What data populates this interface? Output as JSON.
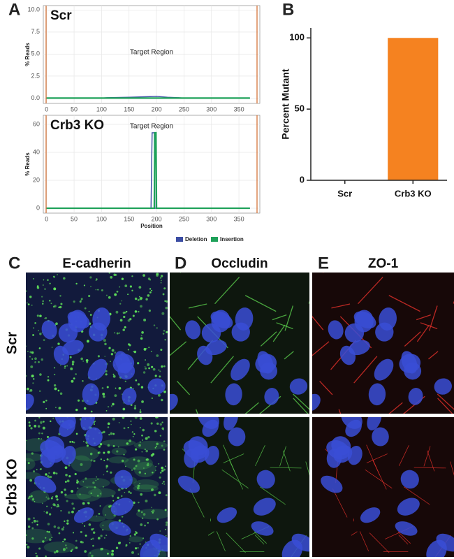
{
  "panel_labels": [
    "A",
    "B",
    "C",
    "D",
    "E"
  ],
  "chart_data": [
    {
      "type": "line",
      "title": "Scr",
      "y_label": "% Reads",
      "annotation": "Target Region",
      "x": [
        0,
        100,
        110,
        150,
        180,
        200,
        220,
        240,
        250,
        370
      ],
      "series": [
        {
          "name": "Deletion",
          "color": "#3b4da3",
          "values": [
            0,
            0,
            0.05,
            0.1,
            0.15,
            0.2,
            0.1,
            0.05,
            0,
            0
          ]
        },
        {
          "name": "Insertion",
          "color": "#1fa25a",
          "values": [
            0,
            0,
            0,
            0,
            0,
            0,
            0,
            0,
            0,
            0
          ]
        }
      ],
      "xlim": [
        -6,
        388
      ],
      "ylim": [
        -0.6,
        10.5
      ],
      "xticks": [
        0,
        50,
        100,
        150,
        200,
        250,
        300,
        350
      ],
      "yticks": [
        {
          "value": 0,
          "label": "0.0"
        },
        {
          "value": 2.5,
          "label": "2.5"
        },
        {
          "value": 5,
          "label": "5.0"
        },
        {
          "value": 7.5,
          "label": "7.5"
        },
        {
          "value": 10,
          "label": "10.0"
        }
      ],
      "grid": true
    },
    {
      "type": "line",
      "title": "Crb3 KO",
      "y_label": "% Reads",
      "x_label": "Position",
      "annotation": "Target Region",
      "x": [
        0,
        190,
        192,
        196,
        197,
        199,
        200,
        370
      ],
      "series": [
        {
          "name": "Deletion",
          "color": "#3b4da3",
          "values": [
            0,
            0,
            54,
            54,
            0,
            0,
            0,
            0
          ]
        },
        {
          "name": "Insertion",
          "color": "#1fa25a",
          "values": [
            0,
            0,
            0,
            0,
            54,
            54,
            0,
            0
          ]
        }
      ],
      "xlim": [
        -6,
        388
      ],
      "ylim": [
        -3.5,
        66.5
      ],
      "xticks": [
        0,
        50,
        100,
        150,
        200,
        250,
        300,
        350
      ],
      "yticks": [
        0,
        20,
        40,
        60
      ],
      "grid": true
    },
    {
      "type": "bar",
      "y_label": "Percent Mutant",
      "categories": [
        "Scr",
        "Crb3 KO"
      ],
      "values": [
        0,
        100
      ],
      "color": "#f58220",
      "ylim": [
        0,
        107
      ],
      "yticks": [
        0,
        50,
        100
      ]
    }
  ],
  "microscopy": {
    "columns": [
      "E-cadherin",
      "Occludin",
      "ZO-1"
    ],
    "rows": [
      "Scr",
      "Crb3 KO"
    ]
  }
}
